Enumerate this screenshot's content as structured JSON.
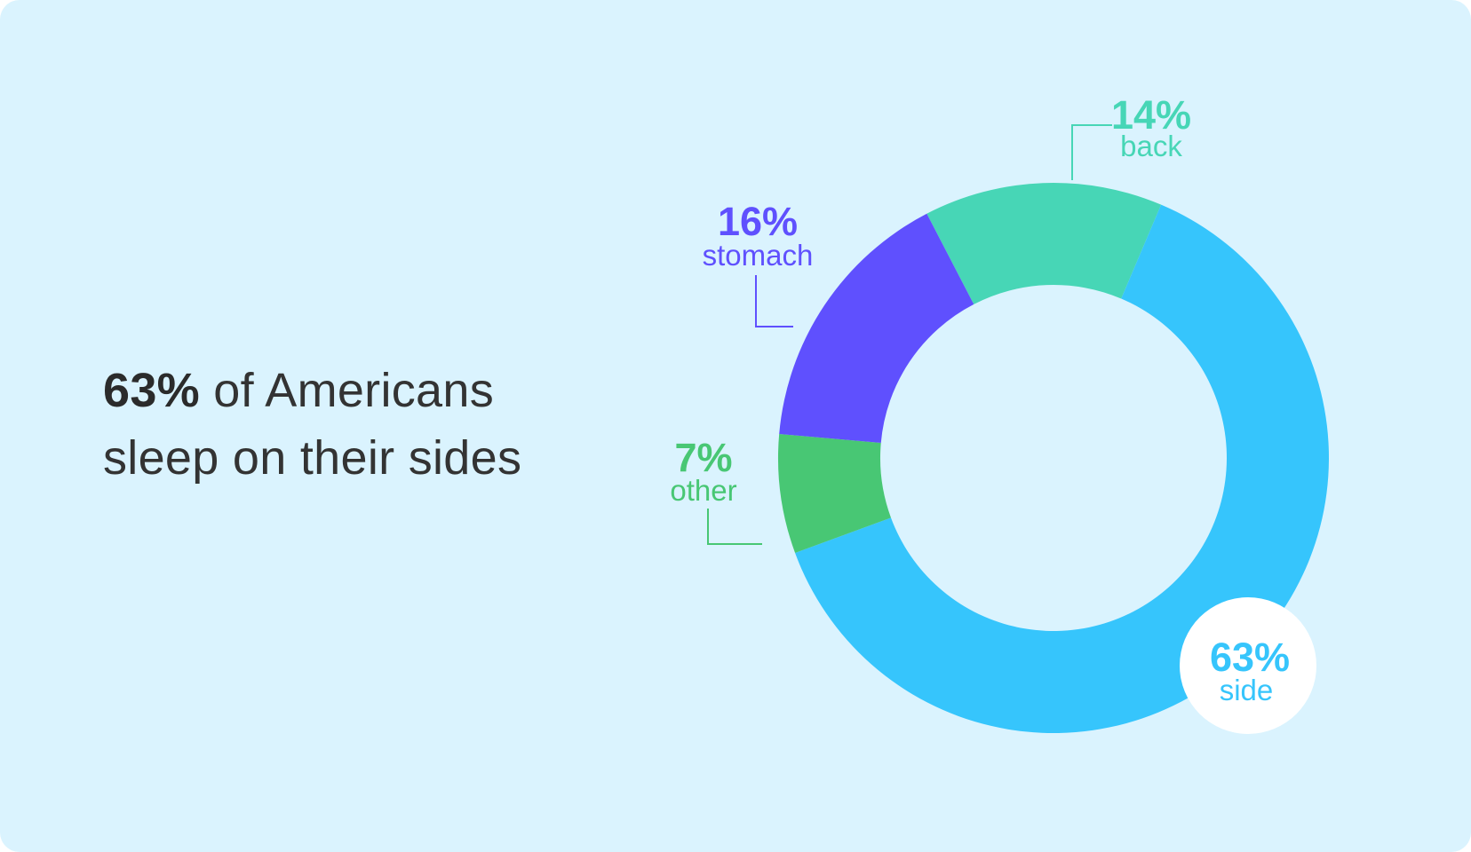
{
  "headline": {
    "highlight": "63%",
    "line1_rest": " of Americans",
    "line2": "sleep on their sides"
  },
  "chart_data": {
    "type": "pie",
    "style": "donut",
    "slices": [
      {
        "label": "back",
        "value": 14,
        "display": "14%",
        "color": "#47d6b6"
      },
      {
        "label": "side",
        "value": 63,
        "display": "63%",
        "color": "#36c5fc"
      },
      {
        "label": "other",
        "value": 7,
        "display": "7%",
        "color": "#48c774"
      },
      {
        "label": "stomach",
        "value": 16,
        "display": "16%",
        "color": "#5f50fe"
      }
    ],
    "colors": {
      "background": "#daf3fe",
      "text": "#333333"
    }
  }
}
